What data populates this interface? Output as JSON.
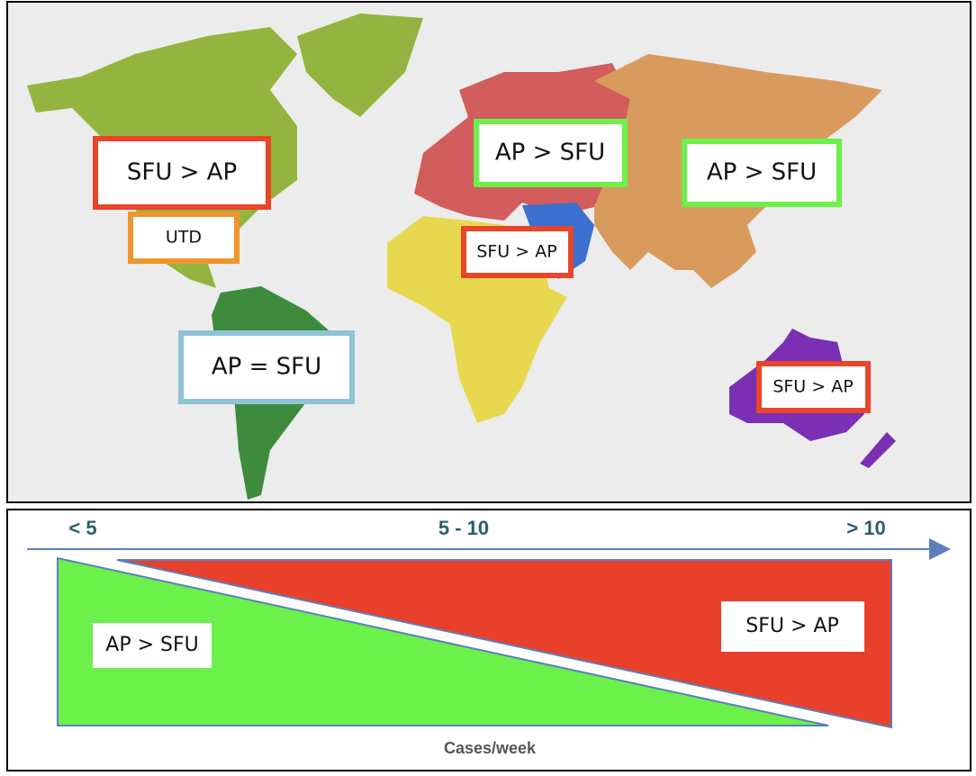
{
  "map": {
    "labels": [
      {
        "text": "SFU > AP"
      },
      {
        "text": "UTD"
      },
      {
        "text": "AP = SFU"
      },
      {
        "text": "AP > SFU"
      },
      {
        "text": "SFU > AP"
      },
      {
        "text": "AP > SFU"
      },
      {
        "text": "SFU > AP"
      }
    ]
  },
  "scale": {
    "ticks": [
      "< 5",
      "5 - 10",
      "> 10"
    ],
    "left_label": "AP > SFU",
    "right_label": "SFU > AP",
    "axis_label": "Cases/week"
  }
}
